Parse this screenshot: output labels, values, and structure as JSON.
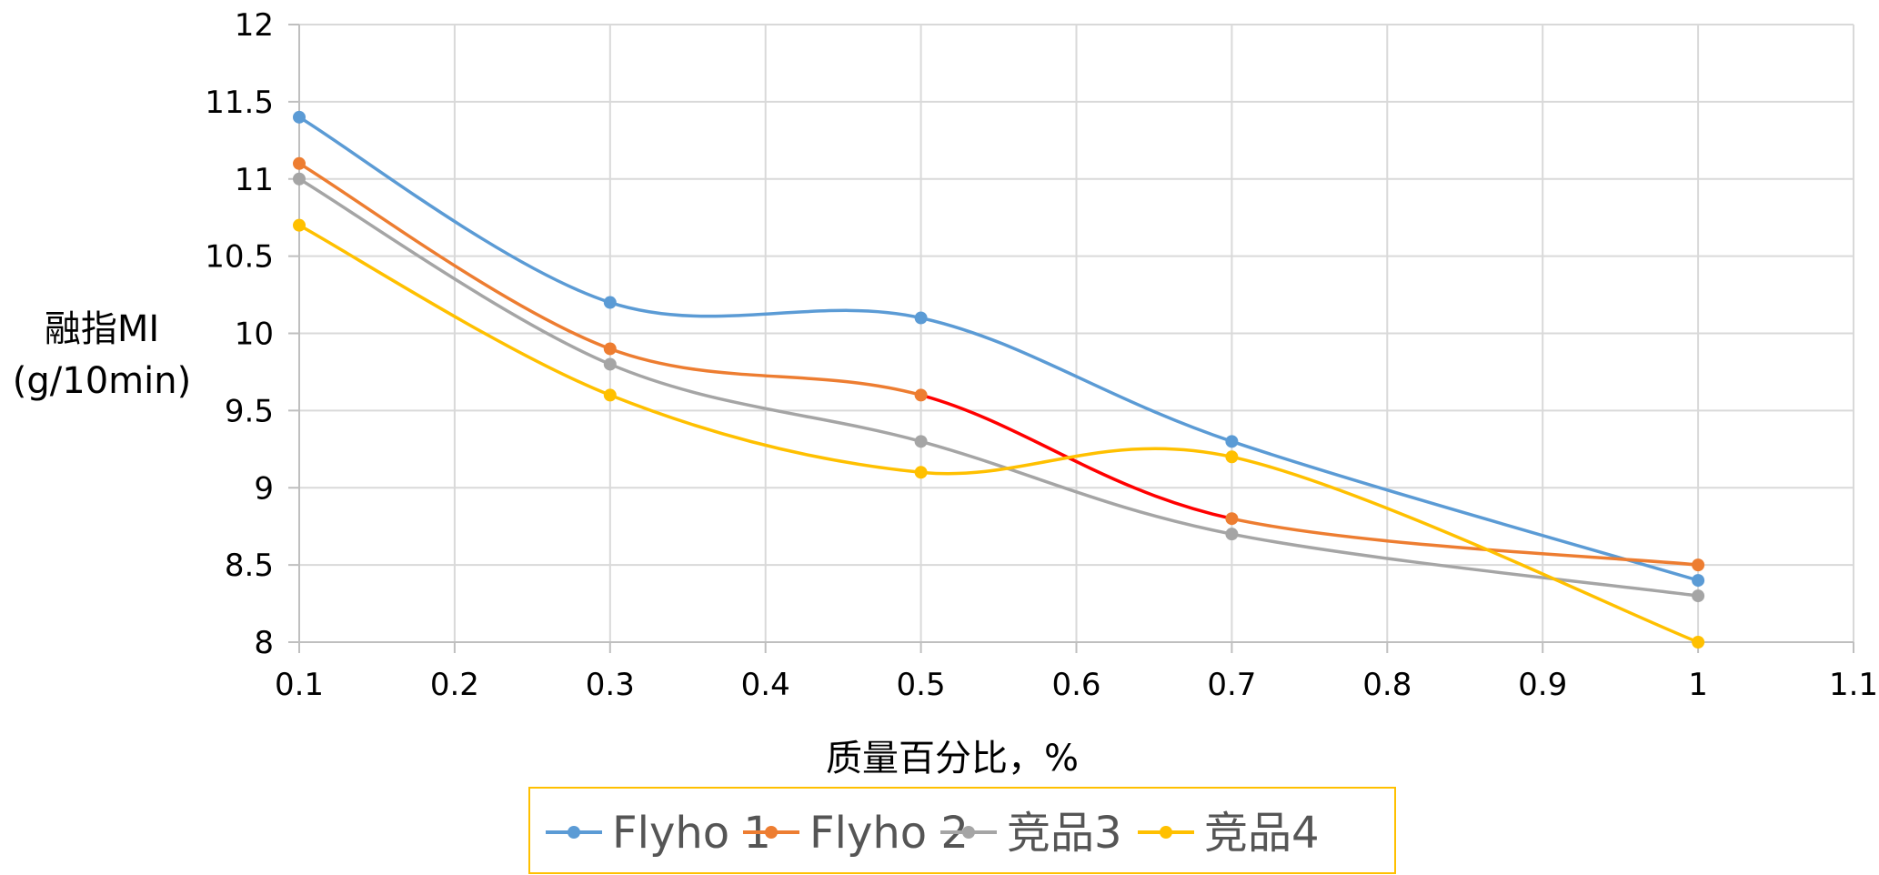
{
  "chart_data": {
    "type": "line",
    "title": "",
    "xlabel": "质量百分比，%",
    "ylabel_lines": [
      "融指MI",
      "(g/10min)"
    ],
    "xlim": [
      0.1,
      1.1
    ],
    "ylim": [
      8,
      12
    ],
    "x_ticks": [
      "0.1",
      "0.2",
      "0.3",
      "0.4",
      "0.5",
      "0.6",
      "0.7",
      "0.8",
      "0.9",
      "1",
      "1.1"
    ],
    "y_ticks": [
      "8",
      "8.5",
      "9",
      "9.5",
      "10",
      "10.5",
      "11",
      "11.5",
      "12"
    ],
    "grid": true,
    "smooth": true,
    "legend_position": "bottom",
    "x": [
      0.1,
      0.3,
      0.5,
      0.7,
      1
    ],
    "series": [
      {
        "name": "Flyho 1",
        "color": "#5B9BD5",
        "values": [
          11.4,
          10.2,
          10.1,
          9.3,
          8.4
        ]
      },
      {
        "name": "Flyho 2",
        "color": "#ED7D31",
        "values": [
          11.1,
          9.9,
          9.6,
          8.8,
          8.5
        ],
        "highlight_segment": {
          "from_x": 0.5,
          "to_x": 0.7,
          "color": "#FF0000"
        }
      },
      {
        "name": "竞品3",
        "color": "#A5A5A5",
        "values": [
          11.0,
          9.8,
          9.3,
          8.7,
          8.3
        ]
      },
      {
        "name": "竞品4",
        "color": "#FFC000",
        "values": [
          10.7,
          9.6,
          9.1,
          9.2,
          8.0
        ]
      }
    ]
  },
  "legend": {
    "border_color": "#FFC000"
  }
}
